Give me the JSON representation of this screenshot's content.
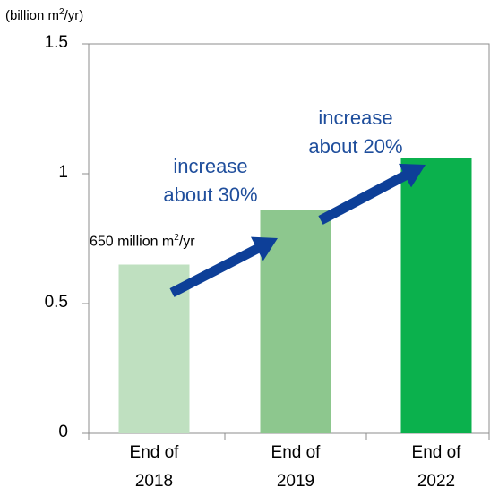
{
  "chart_data": {
    "type": "bar",
    "unit_label": {
      "prefix": "(billion m",
      "sup": "2",
      "suffix": "/yr)"
    },
    "ylim": [
      0,
      1.5
    ],
    "yticks": [
      "0",
      "0.5",
      "1",
      "1.5"
    ],
    "categories": [
      {
        "line1": "End of",
        "line2": "2018"
      },
      {
        "line1": "End of",
        "line2": "2019"
      },
      {
        "line1": "End of",
        "line2": "2022"
      }
    ],
    "values": [
      0.65,
      0.86,
      1.06
    ],
    "colors": [
      "#bfe0c0",
      "#8dc78e",
      "#0bb14d"
    ],
    "grid": false,
    "data_label": {
      "prefix": "650 million m",
      "sup": "2",
      "suffix": "/yr"
    },
    "annotations": [
      {
        "line1": "increase",
        "line2": "about 30%"
      },
      {
        "line1": "increase",
        "line2": "about 20%"
      }
    ],
    "arrow_color": "#0d3f98",
    "annotation_color": "#1f4e9c"
  }
}
